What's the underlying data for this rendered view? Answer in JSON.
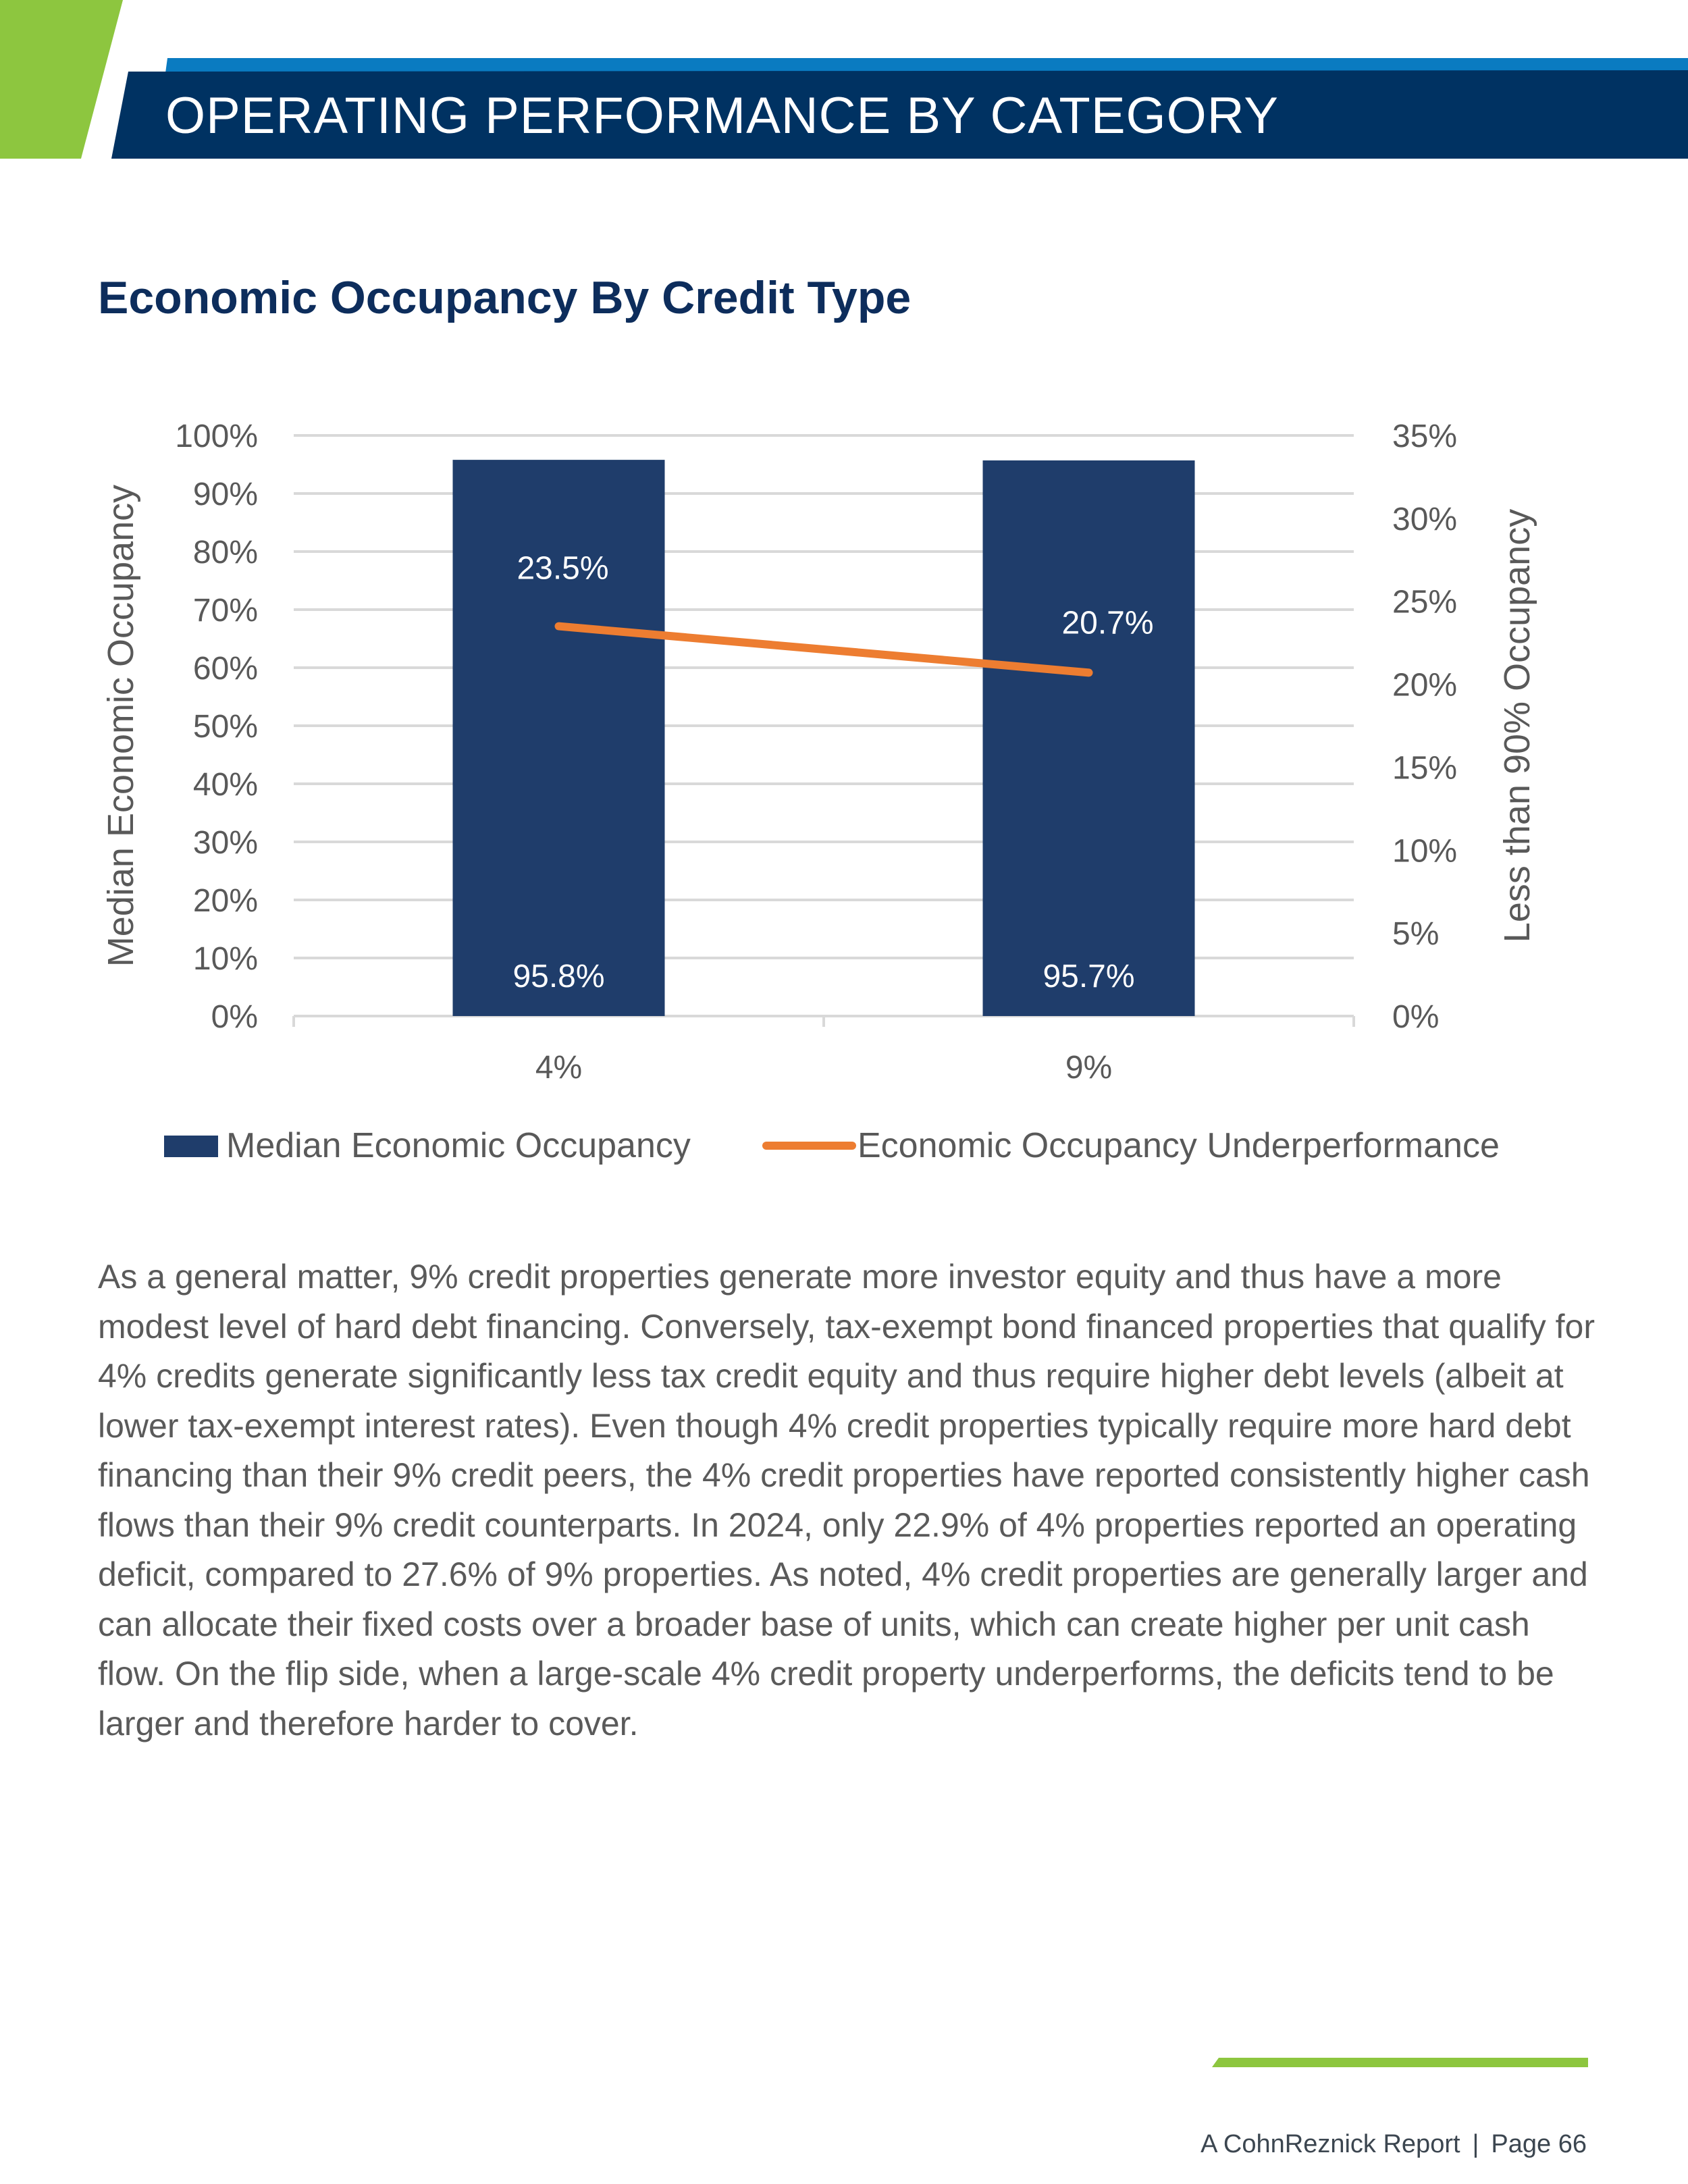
{
  "header": {
    "title": "OPERATING PERFORMANCE BY CATEGORY"
  },
  "colors": {
    "green": "#8dc63f",
    "navy": "#003262",
    "blue_strip": "#0a7bc1",
    "bar": "#1f3d6b",
    "line": "#ed7d31",
    "title": "#0d2d5c"
  },
  "chart_data": {
    "type": "bar+line",
    "title": "Economic Occupancy By Credit Type",
    "categories": [
      "4%",
      "9%"
    ],
    "series": [
      {
        "name": "Median Economic Occupancy",
        "type": "bar",
        "axis": "left",
        "values": [
          95.8,
          95.7
        ],
        "labels": [
          "95.8%",
          "95.7%"
        ]
      },
      {
        "name": "Economic Occupancy Underperformance",
        "type": "line",
        "axis": "right",
        "values": [
          23.5,
          20.7
        ],
        "labels": [
          "23.5%",
          "20.7%"
        ]
      }
    ],
    "ylabel": "Median Economic Occupancy",
    "y2label": "Less than 90% Occupancy",
    "ylim": [
      0,
      100
    ],
    "y2lim": [
      0,
      35
    ],
    "yticks": [
      "0%",
      "10%",
      "20%",
      "30%",
      "40%",
      "50%",
      "60%",
      "70%",
      "80%",
      "90%",
      "100%"
    ],
    "y2ticks": [
      "0%",
      "5%",
      "10%",
      "15%",
      "20%",
      "25%",
      "30%",
      "35%"
    ],
    "grid": true,
    "legend": "bottom"
  },
  "body": {
    "paragraph": "As a general matter, 9% credit properties generate more investor equity and thus have a more modest level of hard debt financing. Conversely, tax-exempt bond financed properties that qualify for 4% credits generate significantly less tax credit equity and thus require higher debt levels (albeit at lower tax-exempt interest rates). Even though 4% credit properties typically require more hard debt financing than their 9% credit peers, the 4% credit properties have reported consistently higher cash flows than their 9% credit counterparts. In 2024, only 22.9% of 4% properties reported an operating deficit, compared to 27.6% of 9% properties. As noted, 4% credit properties are generally larger and can allocate their fixed costs over a broader base of units, which can create higher per unit cash flow. On the flip side, when a large-scale 4% credit property underperforms, the deficits tend to be larger and therefore harder to cover."
  },
  "footer": {
    "report": "A CohnReznick Report",
    "separator": "|",
    "page": "Page 66"
  }
}
